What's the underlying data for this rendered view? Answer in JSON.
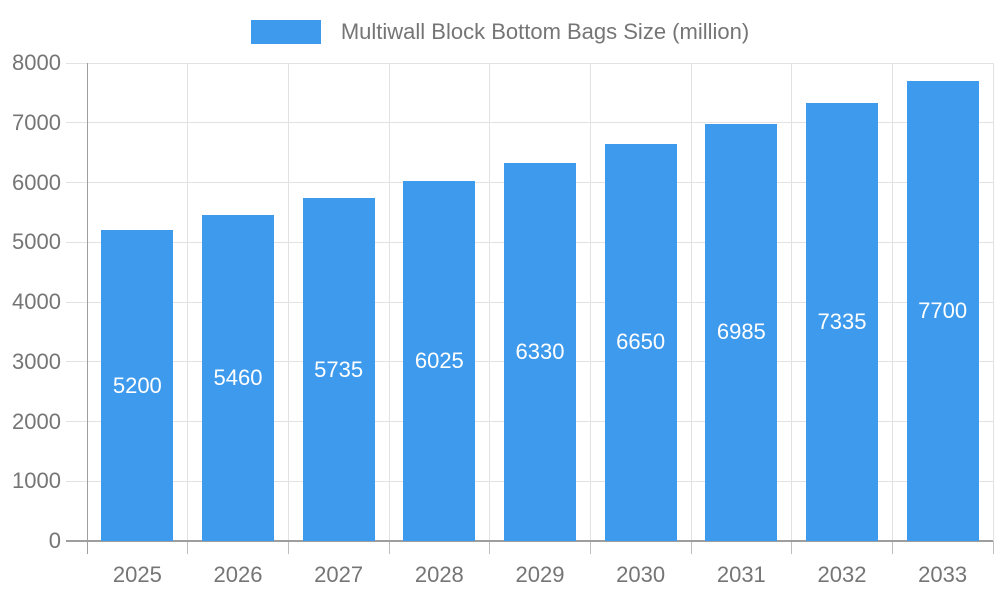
{
  "legend": {
    "label": "Multiwall Block Bottom Bags Size (million)"
  },
  "chart_data": {
    "type": "bar",
    "title": "",
    "categories": [
      "2025",
      "2026",
      "2027",
      "2028",
      "2029",
      "2030",
      "2031",
      "2032",
      "2033"
    ],
    "values": [
      5200,
      5460,
      5735,
      6025,
      6330,
      6650,
      6985,
      7335,
      7700
    ],
    "series_name": "Multiwall Block Bottom Bags Size (million)",
    "xlabel": "",
    "ylabel": "",
    "ylim": [
      0,
      8000
    ],
    "ytick_step": 1000,
    "grid": true,
    "legend_position": "top",
    "bar_value_labels": true
  },
  "colors": {
    "bar": "#3E9AED",
    "grid": "#E2E2E2",
    "axis": "#9E9E9E",
    "tick": "#BDBDBD",
    "text": "#757575",
    "bar_label": "#FFFFFF",
    "background": "#FFFFFF"
  }
}
